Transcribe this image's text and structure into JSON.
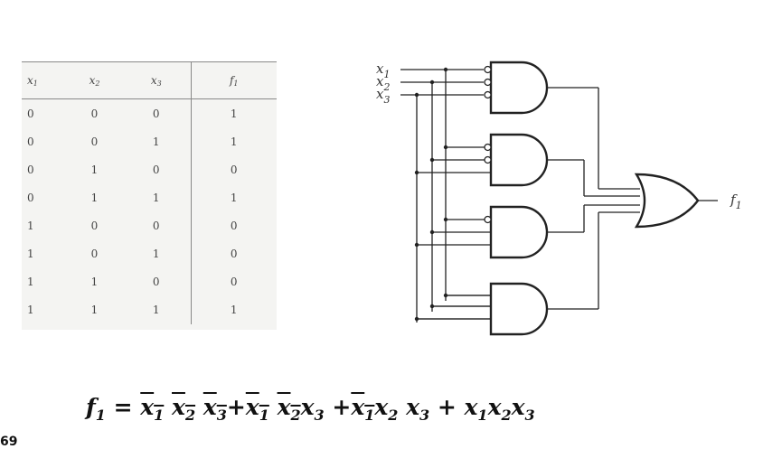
{
  "truth_table": {
    "headers": [
      {
        "var": "x",
        "sub": "1"
      },
      {
        "var": "x",
        "sub": "2"
      },
      {
        "var": "x",
        "sub": "3"
      },
      {
        "var": "f",
        "sub": "1"
      }
    ],
    "rows": [
      [
        "0",
        "0",
        "0",
        "1"
      ],
      [
        "0",
        "0",
        "1",
        "1"
      ],
      [
        "0",
        "1",
        "0",
        "0"
      ],
      [
        "0",
        "1",
        "1",
        "1"
      ],
      [
        "1",
        "0",
        "0",
        "0"
      ],
      [
        "1",
        "0",
        "1",
        "0"
      ],
      [
        "1",
        "1",
        "0",
        "0"
      ],
      [
        "1",
        "1",
        "1",
        "1"
      ]
    ]
  },
  "circuit": {
    "inputs": [
      {
        "var": "x",
        "sub": "1"
      },
      {
        "var": "x",
        "sub": "2"
      },
      {
        "var": "x",
        "sub": "3"
      }
    ],
    "output": {
      "var": "f",
      "sub": "1"
    },
    "gates": [
      {
        "type": "AND",
        "inverted_inputs": [
          "x1",
          "x2",
          "x3"
        ]
      },
      {
        "type": "AND",
        "inverted_inputs": [
          "x1",
          "x2"
        ]
      },
      {
        "type": "AND",
        "inverted_inputs": [
          "x1"
        ]
      },
      {
        "type": "AND",
        "inverted_inputs": []
      },
      {
        "type": "OR",
        "inverted_inputs": []
      }
    ]
  },
  "formula": {
    "lhs": "f",
    "lhs_sub": "1",
    "equals": " = ",
    "text": "f1 = x̄1 x̄2 x̄3 + x̄1 x̄2 x3 + x̄1 x2 x3 + x1 x2 x3"
  },
  "corner_fragment": "69"
}
